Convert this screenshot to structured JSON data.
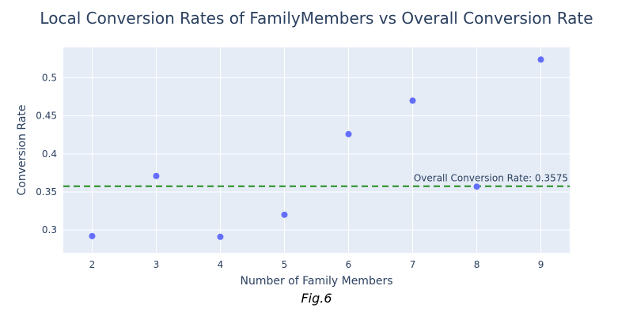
{
  "chart_data": {
    "type": "scatter",
    "title": "Local Conversion Rates of FamilyMembers vs Overall Conversion Rate",
    "xlabel": "Number of Family Members",
    "ylabel": "Conversion Rate",
    "x": [
      2,
      3,
      4,
      5,
      6,
      7,
      8,
      9
    ],
    "y": [
      0.292,
      0.371,
      0.291,
      0.32,
      0.426,
      0.47,
      0.357,
      0.524
    ],
    "xlim": [
      1.55,
      9.45
    ],
    "ylim": [
      0.27,
      0.54
    ],
    "xticks": [
      "2",
      "3",
      "4",
      "5",
      "6",
      "7",
      "8",
      "9"
    ],
    "yticks": [
      "0.3",
      "0.35",
      "0.4",
      "0.45",
      "0.5"
    ],
    "grid": true,
    "reference_line": {
      "y": 0.3575,
      "label": "Overall Conversion Rate: 0.3575",
      "color": "#228b22",
      "style": "dashed"
    },
    "marker_color": "#636efa",
    "plot_bg": "#e5ecf6"
  },
  "caption": "Fig.6"
}
